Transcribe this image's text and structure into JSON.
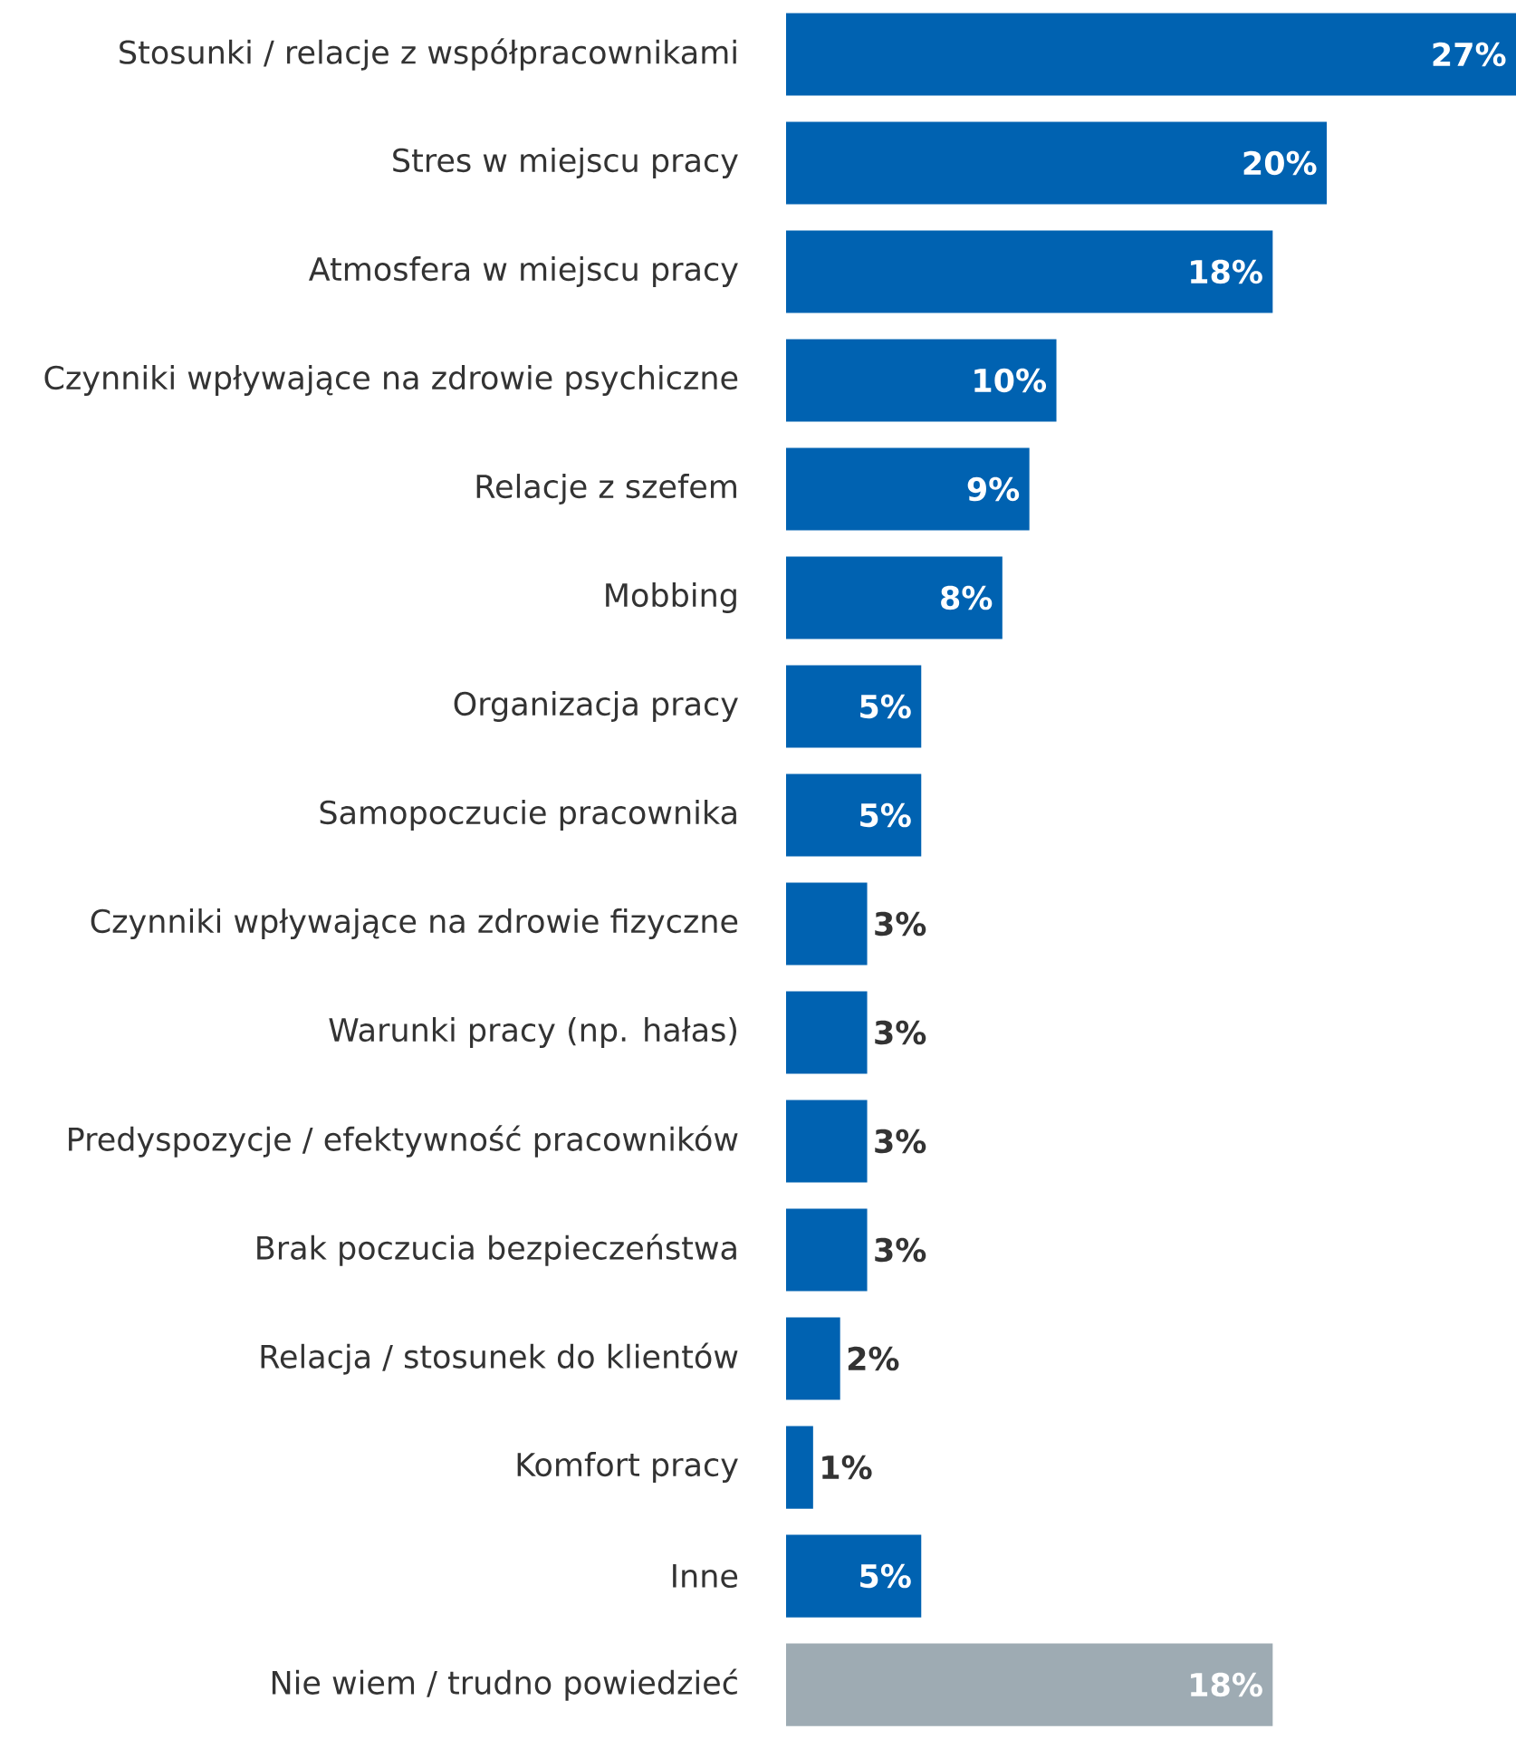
{
  "chart_data": {
    "type": "bar",
    "orientation": "horizontal",
    "categories": [
      "Stosunki / relacje z współpracownikami",
      "Stres w miejscu pracy",
      "Atmosfera w miejscu pracy",
      "Czynniki wpływające na zdrowie psychiczne",
      "Relacje z szefem",
      "Mobbing",
      "Organizacja pracy",
      "Samopoczucie pracownika",
      "Czynniki wpływające na zdrowie fizyczne",
      "Warunki pracy (np. hałas)",
      "Predyspozycje / efektywność pracowników",
      "Brak poczucia bezpieczeństwa",
      "Relacja / stosunek do klientów",
      "Komfort pracy",
      "Inne",
      "Nie wiem / trudno powiedzieć"
    ],
    "values": [
      27,
      20,
      18,
      10,
      9,
      8,
      5,
      5,
      3,
      3,
      3,
      3,
      2,
      1,
      5,
      18
    ],
    "colors": [
      "#0062b1",
      "#0062b1",
      "#0062b1",
      "#0062b1",
      "#0062b1",
      "#0062b1",
      "#0062b1",
      "#0062b1",
      "#0062b1",
      "#0062b1",
      "#0062b1",
      "#0062b1",
      "#0062b1",
      "#0062b1",
      "#0062b1",
      "#9eabb3"
    ],
    "value_labels": [
      "27%",
      "20%",
      "18%",
      "10%",
      "9%",
      "8%",
      "5%",
      "5%",
      "3%",
      "3%",
      "3%",
      "3%",
      "2%",
      "1%",
      "5%",
      "18%"
    ]
  }
}
